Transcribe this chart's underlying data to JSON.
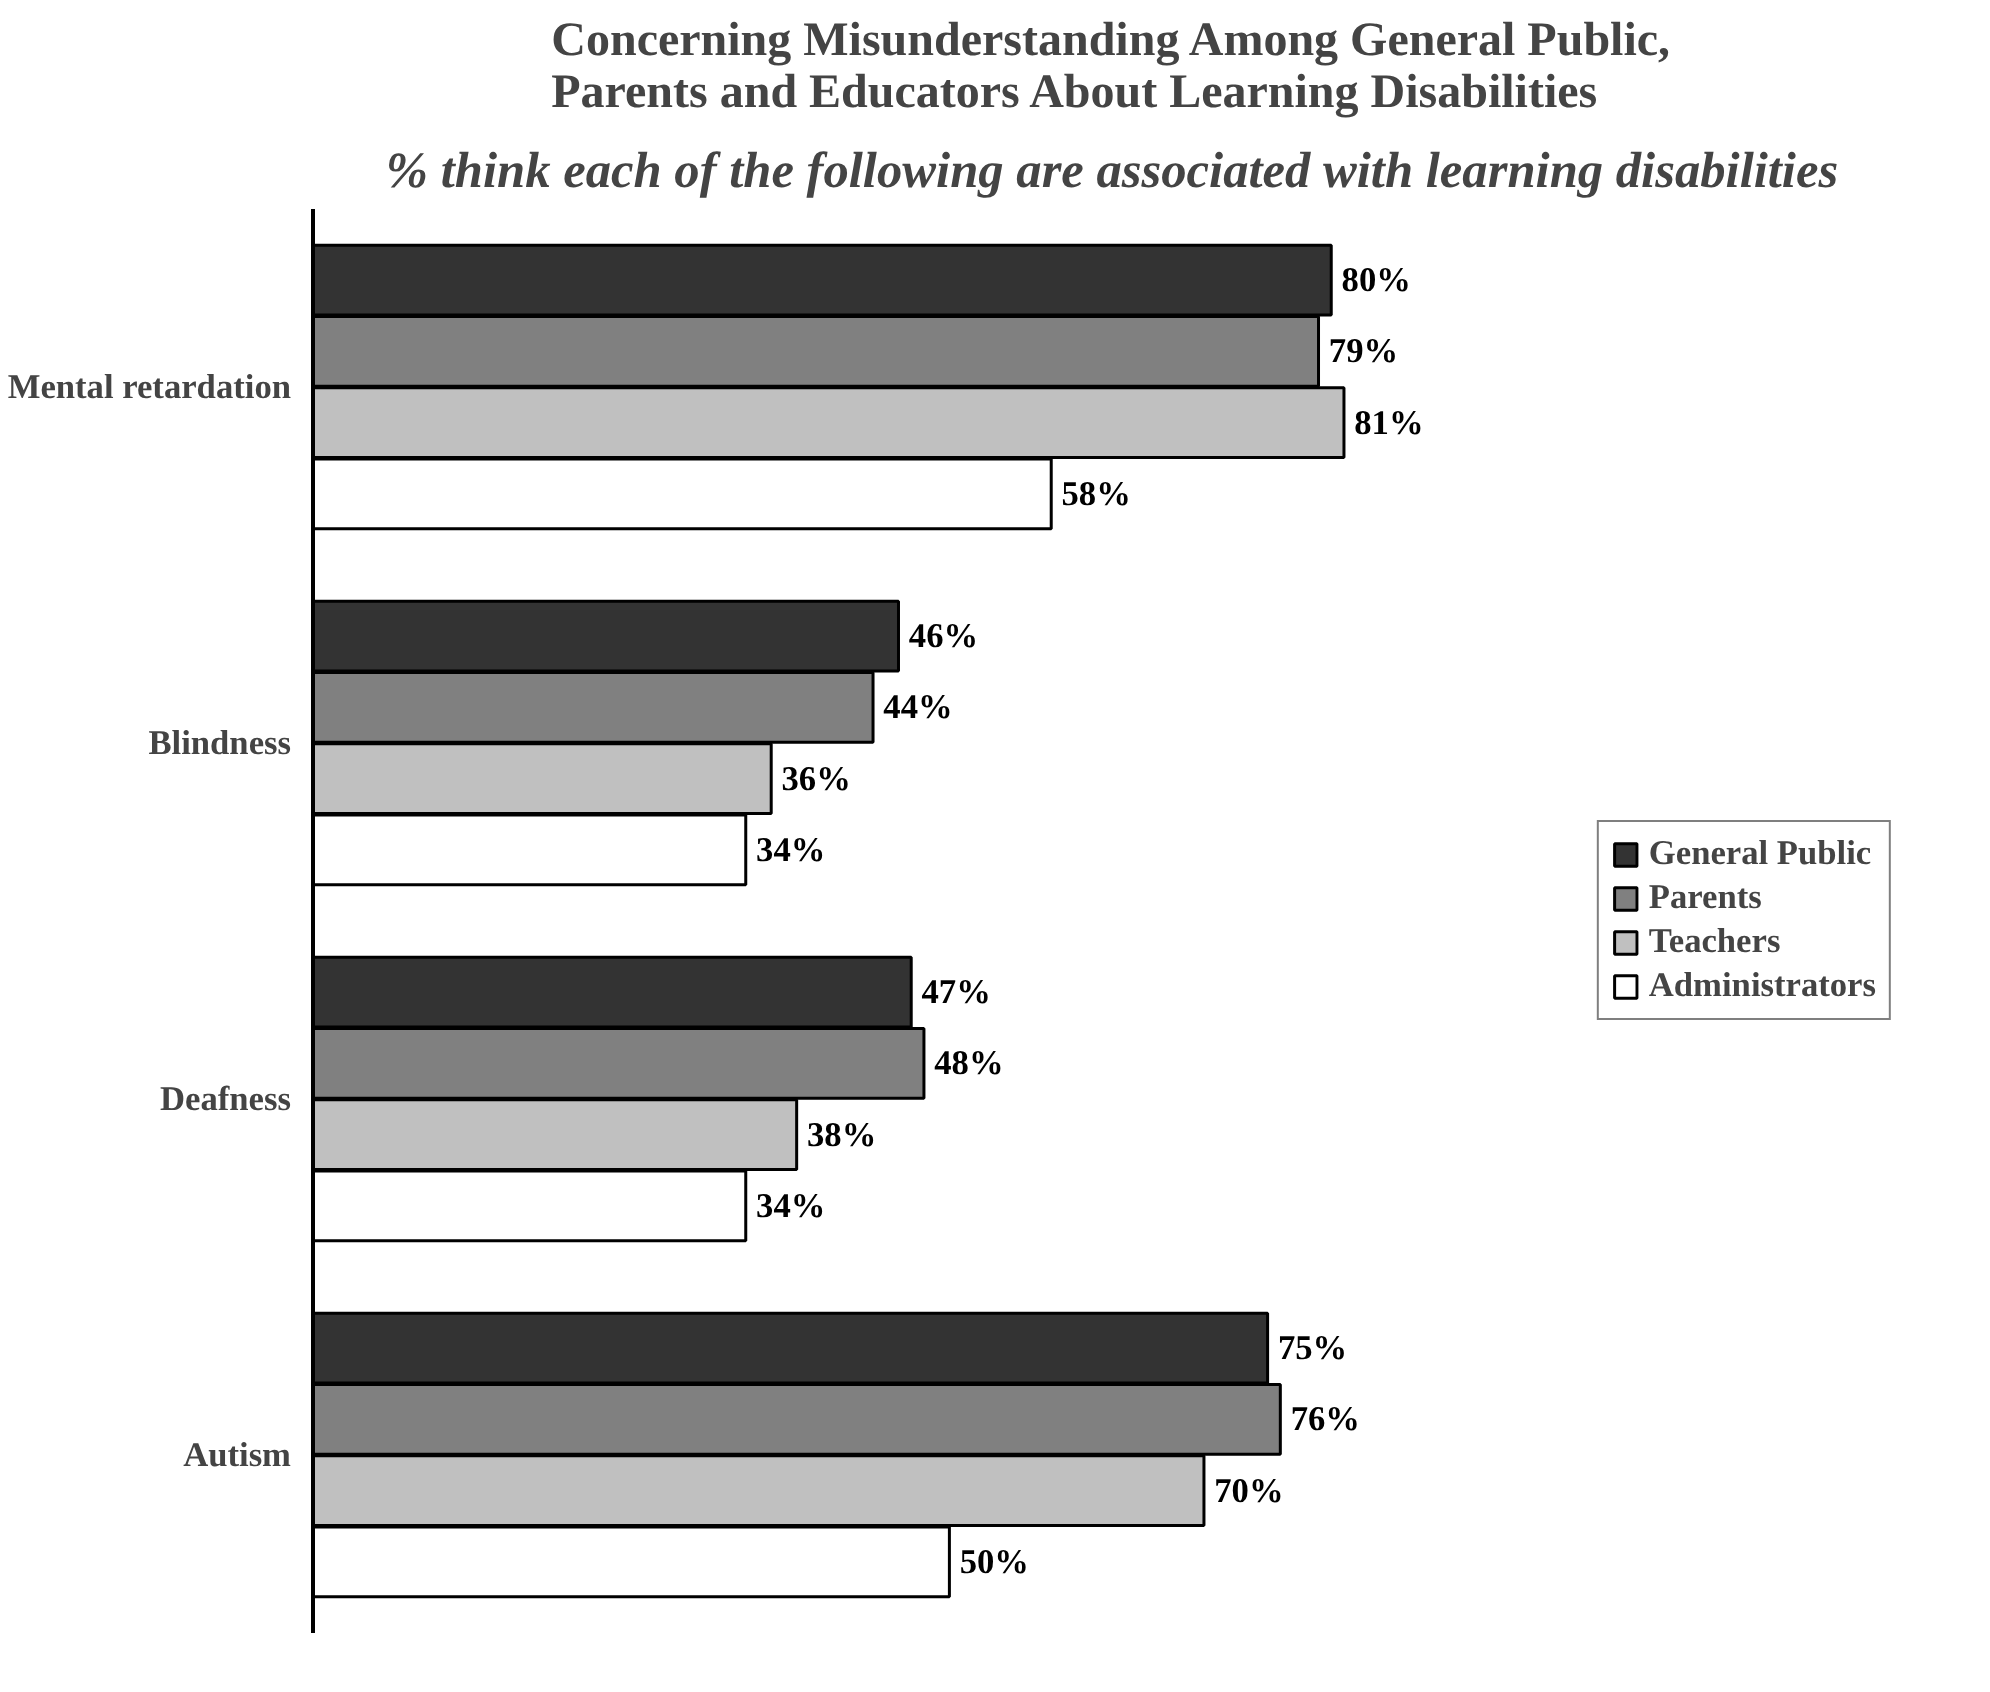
{
  "chart_data": {
    "type": "bar",
    "orientation": "horizontal",
    "title": "Concerning Misunderstanding Among General Public,\nParents and Educators About Learning Disabilities",
    "subtitle": "% think each of the following are associated with learning disabilities",
    "categories": [
      "Mental retardation",
      "Blindness",
      "Deafness",
      "Autism"
    ],
    "series": [
      {
        "name": "General Public",
        "color": "#333333",
        "values": [
          80,
          46,
          47,
          75
        ],
        "value_labels": [
          "80%",
          "46%",
          "47%",
          "75%"
        ]
      },
      {
        "name": "Parents",
        "color": "#808080",
        "values": [
          79,
          44,
          48,
          76
        ],
        "value_labels": [
          "79%",
          "44%",
          "48%",
          "76%"
        ]
      },
      {
        "name": "Teachers",
        "color": "#c0c0c0",
        "values": [
          81,
          36,
          38,
          70
        ],
        "value_labels": [
          "81%",
          "36%",
          "38%",
          "70%"
        ]
      },
      {
        "name": "Administrators",
        "color": "#ffffff",
        "values": [
          58,
          34,
          34,
          50
        ],
        "value_labels": [
          "58%",
          "34%",
          "34%",
          "50%"
        ]
      }
    ],
    "legend": "right",
    "grid": false
  }
}
